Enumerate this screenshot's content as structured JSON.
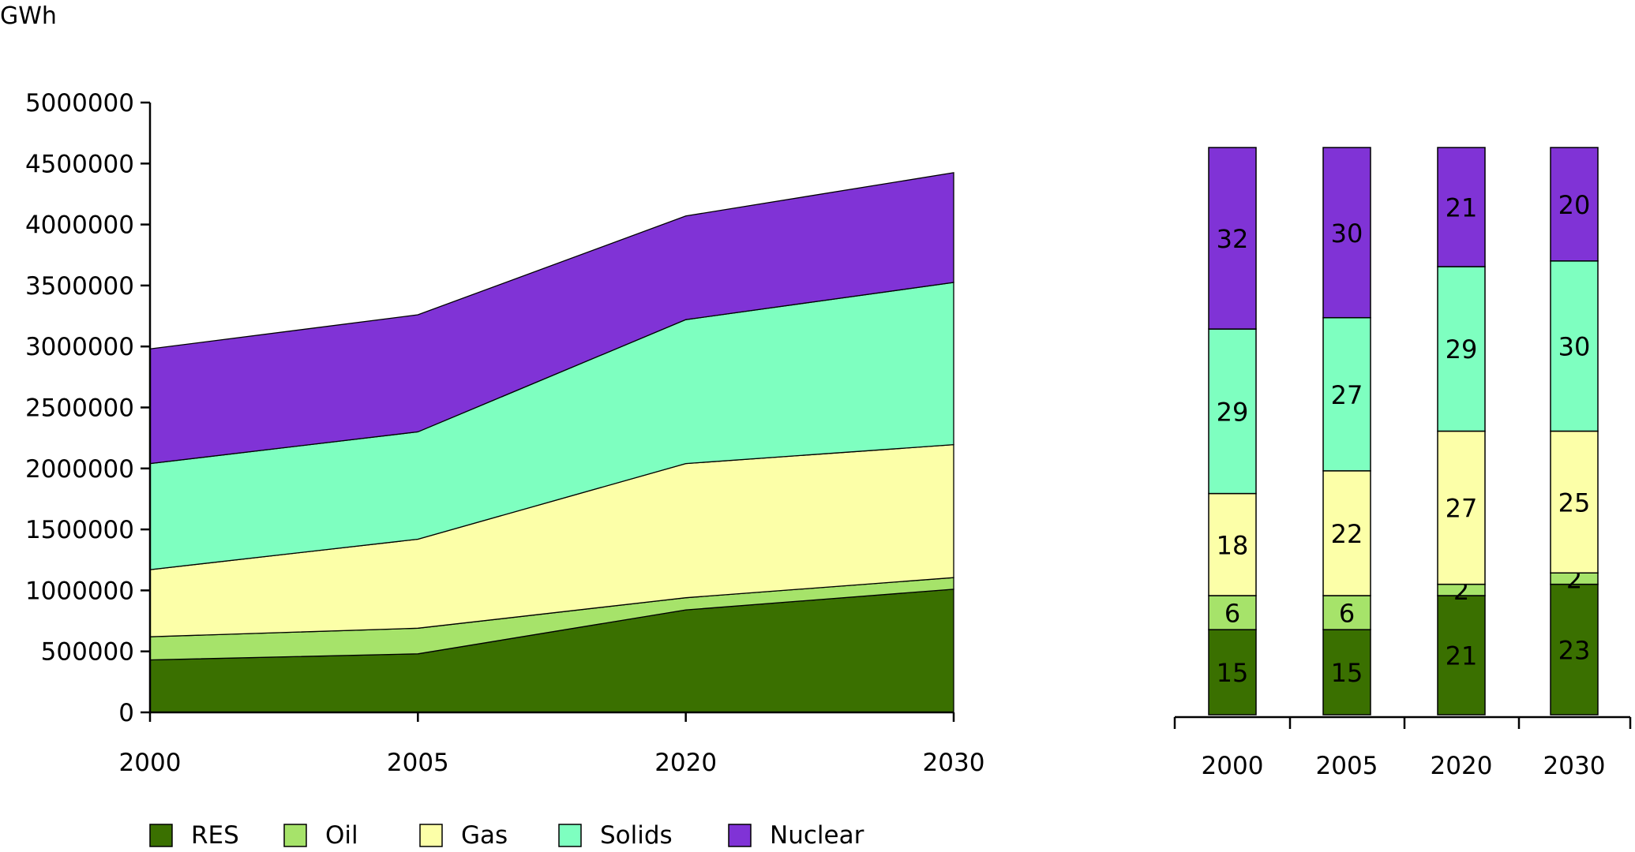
{
  "chart_data": [
    {
      "type": "area",
      "stacked": true,
      "ylabel": "GWh",
      "ylim": [
        0,
        5000000
      ],
      "yticks": [
        0,
        500000,
        1000000,
        1500000,
        2000000,
        2500000,
        3000000,
        3500000,
        4000000,
        4500000,
        5000000
      ],
      "categories": [
        "2000",
        "2005",
        "2020",
        "2030"
      ],
      "series": [
        {
          "name": "RES",
          "color": "#3a7000",
          "values": [
            430000,
            480000,
            840000,
            1010000
          ]
        },
        {
          "name": "Oil",
          "color": "#a6e36a",
          "values": [
            190000,
            210000,
            100000,
            95000
          ]
        },
        {
          "name": "Gas",
          "color": "#fcffa8",
          "values": [
            550000,
            730000,
            1100000,
            1090000
          ]
        },
        {
          "name": "Solids",
          "color": "#7effc0",
          "values": [
            870000,
            880000,
            1180000,
            1330000
          ]
        },
        {
          "name": "Nuclear",
          "color": "#8033d6",
          "values": [
            940000,
            960000,
            850000,
            900000
          ]
        }
      ],
      "legend_position": "bottom",
      "grid": false
    },
    {
      "type": "bar",
      "stacked": true,
      "percent": true,
      "categories": [
        "2000",
        "2005",
        "2020",
        "2030"
      ],
      "series": [
        {
          "name": "RES",
          "color": "#3a7000",
          "values": [
            15,
            15,
            21,
            23
          ]
        },
        {
          "name": "Oil",
          "color": "#a6e36a",
          "values": [
            6,
            6,
            2,
            2
          ]
        },
        {
          "name": "Gas",
          "color": "#fcffa8",
          "values": [
            18,
            22,
            27,
            25
          ]
        },
        {
          "name": "Solids",
          "color": "#7effc0",
          "values": [
            29,
            27,
            29,
            30
          ]
        },
        {
          "name": "Nuclear",
          "color": "#8033d6",
          "values": [
            32,
            30,
            21,
            20
          ]
        }
      ],
      "data_labels": true,
      "grid": false
    }
  ]
}
